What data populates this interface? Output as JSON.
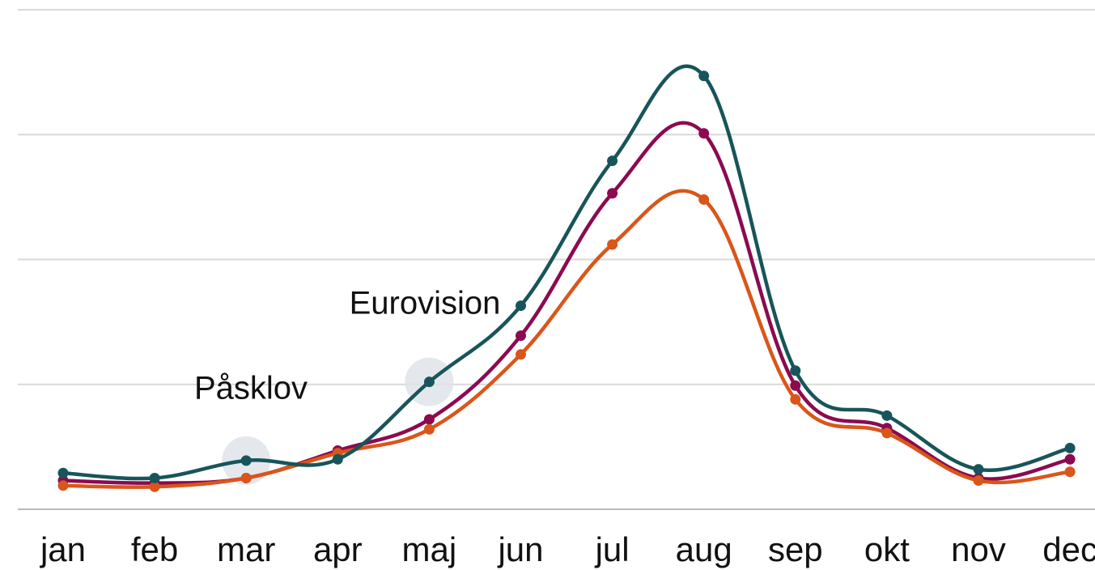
{
  "chart_data": {
    "type": "line",
    "categories": [
      "jan",
      "feb",
      "mar",
      "apr",
      "maj",
      "jun",
      "jul",
      "aug",
      "sep",
      "okt",
      "nov",
      "dec"
    ],
    "series": [
      {
        "color": "#8b0a50",
        "values": [
          0.23,
          0.21,
          0.25,
          0.47,
          0.72,
          1.39,
          2.53,
          3.01,
          0.99,
          0.65,
          0.25,
          0.4
        ]
      },
      {
        "color": "#d9561a",
        "values": [
          0.19,
          0.18,
          0.25,
          0.45,
          0.64,
          1.24,
          2.12,
          2.48,
          0.88,
          0.61,
          0.23,
          0.3
        ]
      },
      {
        "color": "#17555a",
        "values": [
          0.29,
          0.25,
          0.39,
          0.4,
          1.02,
          1.63,
          2.79,
          3.47,
          1.11,
          0.75,
          0.32,
          0.49
        ]
      }
    ],
    "ylim": [
      0,
      4
    ],
    "yticks": [
      0,
      1,
      2,
      3,
      4
    ],
    "grid": true,
    "annotations": [
      {
        "text": "Påsklov"
      },
      {
        "text": "Eurovision"
      }
    ]
  }
}
